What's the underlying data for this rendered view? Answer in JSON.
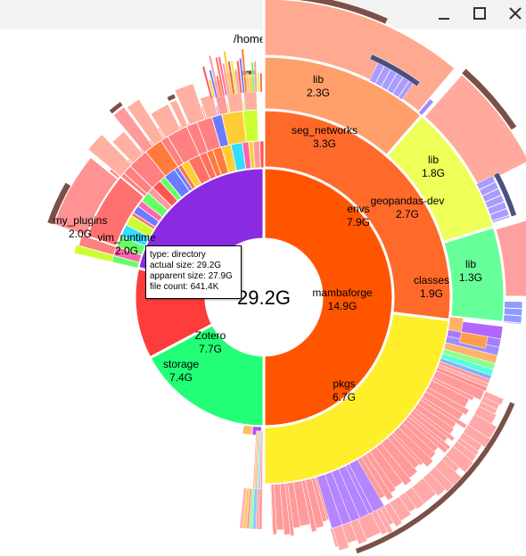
{
  "window": {
    "controls": {
      "minimize_icon": "minimize-icon",
      "maximize_icon": "maximize-icon",
      "close_icon": "close-icon"
    }
  },
  "path": "/home/serge",
  "center": {
    "size": "29.2G"
  },
  "ring1": [
    {
      "name": "mambaforge",
      "size": "14.9G",
      "color": "#ff5500"
    },
    {
      "name": "Zotero",
      "size": "7.7G",
      "color": "#22ff77"
    },
    {
      "name": "storage",
      "size": "7.4G",
      "color": "#ff3c3c"
    }
  ],
  "ring2": [
    {
      "name": "envs",
      "size": "7.9G",
      "color": "#ff6a2a"
    },
    {
      "name": "pkgs",
      "size": "6.7G",
      "color": "#ffee2a"
    }
  ],
  "ring3": [
    {
      "name": "seg_networks",
      "size": "3.3G",
      "color": "#ffa06a"
    },
    {
      "name": "geopandas-dev",
      "size": "2.7G",
      "color": "#eeff5a"
    },
    {
      "name": "classes",
      "size": "1.9G",
      "color": "#66ff99"
    }
  ],
  "ring4": [
    {
      "name": "lib",
      "size": "2.3G",
      "color": "#ffaa90"
    },
    {
      "name": "lib",
      "size": "1.8G",
      "color": "#ffaa9c"
    },
    {
      "name": "lib",
      "size": "1.3G",
      "color": "#ffa0a0"
    }
  ],
  "left_labels": [
    {
      "name": "my_plugins",
      "size": "2.0G"
    },
    {
      "name": "vim_runtime",
      "size": "2.0G"
    }
  ],
  "tooltip": {
    "type_line": "type: directory",
    "actual_line": "actual size: 29.2G",
    "apparent_line": "apparent size: 27.9G",
    "count_line": "file count: 641.4K"
  },
  "colors": {
    "outer_brown": "#7b5048",
    "purple": "#8a2be2",
    "pink": "#ff9a9a",
    "lavender": "#b49cff"
  }
}
